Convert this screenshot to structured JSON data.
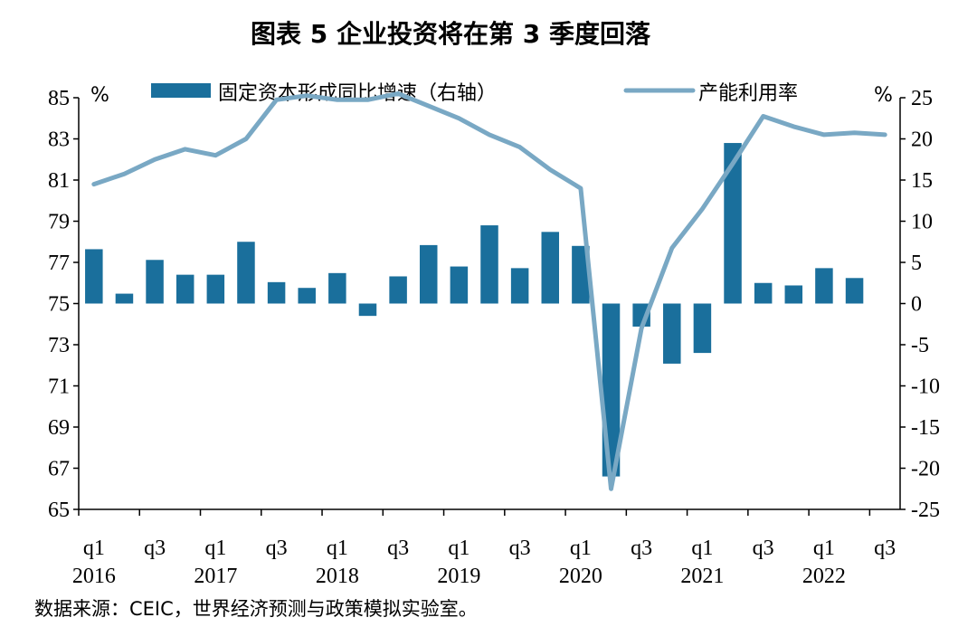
{
  "title": "图表 5 企业投资将在第 3 季度回落",
  "source": "数据来源：CEIC，世界经济预测与政策模拟实验室。",
  "colors": {
    "bar": "#1a6f9c",
    "line": "#79a8c4",
    "axis": "#000000"
  },
  "chart_data": {
    "type": "bar+line",
    "categories": [
      "2016Q1",
      "2016Q2",
      "2016Q3",
      "2016Q4",
      "2017Q1",
      "2017Q2",
      "2017Q3",
      "2017Q4",
      "2018Q1",
      "2018Q2",
      "2018Q3",
      "2018Q4",
      "2019Q1",
      "2019Q2",
      "2019Q3",
      "2019Q4",
      "2020Q1",
      "2020Q2",
      "2020Q3",
      "2020Q4",
      "2021Q1",
      "2021Q2",
      "2021Q3",
      "2021Q4",
      "2022Q1",
      "2022Q2",
      "2022Q3"
    ],
    "x_tick_labels": [
      "q1",
      "q3",
      "q1",
      "q3",
      "q1",
      "q3",
      "q1",
      "q3",
      "q1",
      "q3",
      "q1",
      "q3",
      "q1",
      "q3"
    ],
    "x_year_labels": [
      "2016",
      "2017",
      "2018",
      "2019",
      "2020",
      "2021",
      "2022"
    ],
    "left_axis": {
      "unit": "%",
      "ylim": [
        65,
        85
      ],
      "ticks": [
        "85",
        "83",
        "81",
        "79",
        "77",
        "75",
        "73",
        "71",
        "69",
        "67",
        "65"
      ]
    },
    "right_axis": {
      "unit": "%",
      "ylim": [
        -25,
        25
      ],
      "ticks": [
        "25",
        "20",
        "15",
        "10",
        "5",
        "0",
        "-5",
        "-10",
        "-15",
        "-20",
        "-25"
      ]
    },
    "series": [
      {
        "name": "固定资本形成同比增速（右轴）",
        "type": "bar",
        "axis": "right",
        "values": [
          6.6,
          1.2,
          5.3,
          3.5,
          3.5,
          7.5,
          2.6,
          1.9,
          3.7,
          -1.5,
          3.3,
          7.1,
          4.5,
          9.5,
          4.3,
          8.7,
          7.0,
          -21.0,
          -2.8,
          -7.3,
          -6.0,
          19.5,
          2.5,
          2.2,
          4.3,
          3.1,
          null
        ]
      },
      {
        "name": "产能利用率",
        "type": "line",
        "axis": "left",
        "values": [
          80.8,
          81.3,
          82.0,
          82.5,
          82.2,
          83.0,
          84.9,
          85.1,
          84.9,
          84.9,
          85.2,
          84.6,
          84.0,
          83.2,
          82.6,
          81.5,
          80.6,
          66.0,
          73.8,
          77.7,
          79.6,
          81.8,
          84.1,
          83.6,
          83.2,
          83.3,
          83.2
        ]
      }
    ],
    "legend_placement": "top",
    "grid": false
  }
}
